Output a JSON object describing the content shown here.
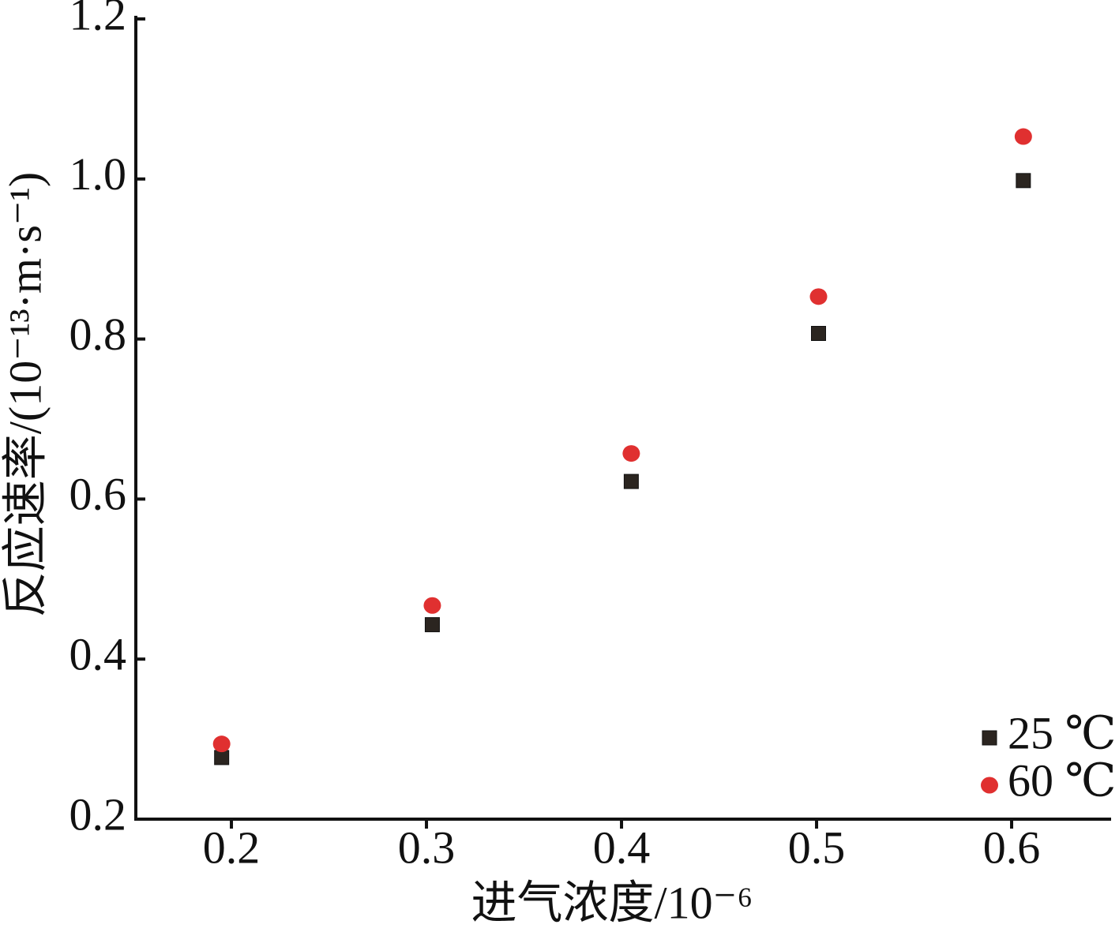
{
  "chart_data": {
    "type": "scatter",
    "xlabel": "进气浓度/10⁻⁶",
    "ylabel": "反应速率/(10⁻¹³·m·s⁻¹)",
    "xlim": [
      0.151,
      0.651
    ],
    "ylim": [
      0.2,
      1.2
    ],
    "xticks": [
      0.2,
      0.3,
      0.4,
      0.5,
      0.6
    ],
    "yticks": [
      0.2,
      0.4,
      0.6,
      0.8,
      {
        "value": 1,
        "label": "1.0"
      },
      1.2
    ],
    "legend": "lower right",
    "series": [
      {
        "name": "25 ℃",
        "color": "#2b2520",
        "marker": "square",
        "x": [
          0.195,
          0.303,
          0.405,
          0.501,
          0.606
        ],
        "values": [
          0.277,
          0.443,
          0.622,
          0.807,
          0.998
        ]
      },
      {
        "name": "60 ℃",
        "color": "#e03030",
        "marker": "circle",
        "x": [
          0.195,
          0.303,
          0.405,
          0.501,
          0.606
        ],
        "values": [
          0.294,
          0.467,
          0.657,
          0.853,
          1.053
        ]
      }
    ]
  }
}
